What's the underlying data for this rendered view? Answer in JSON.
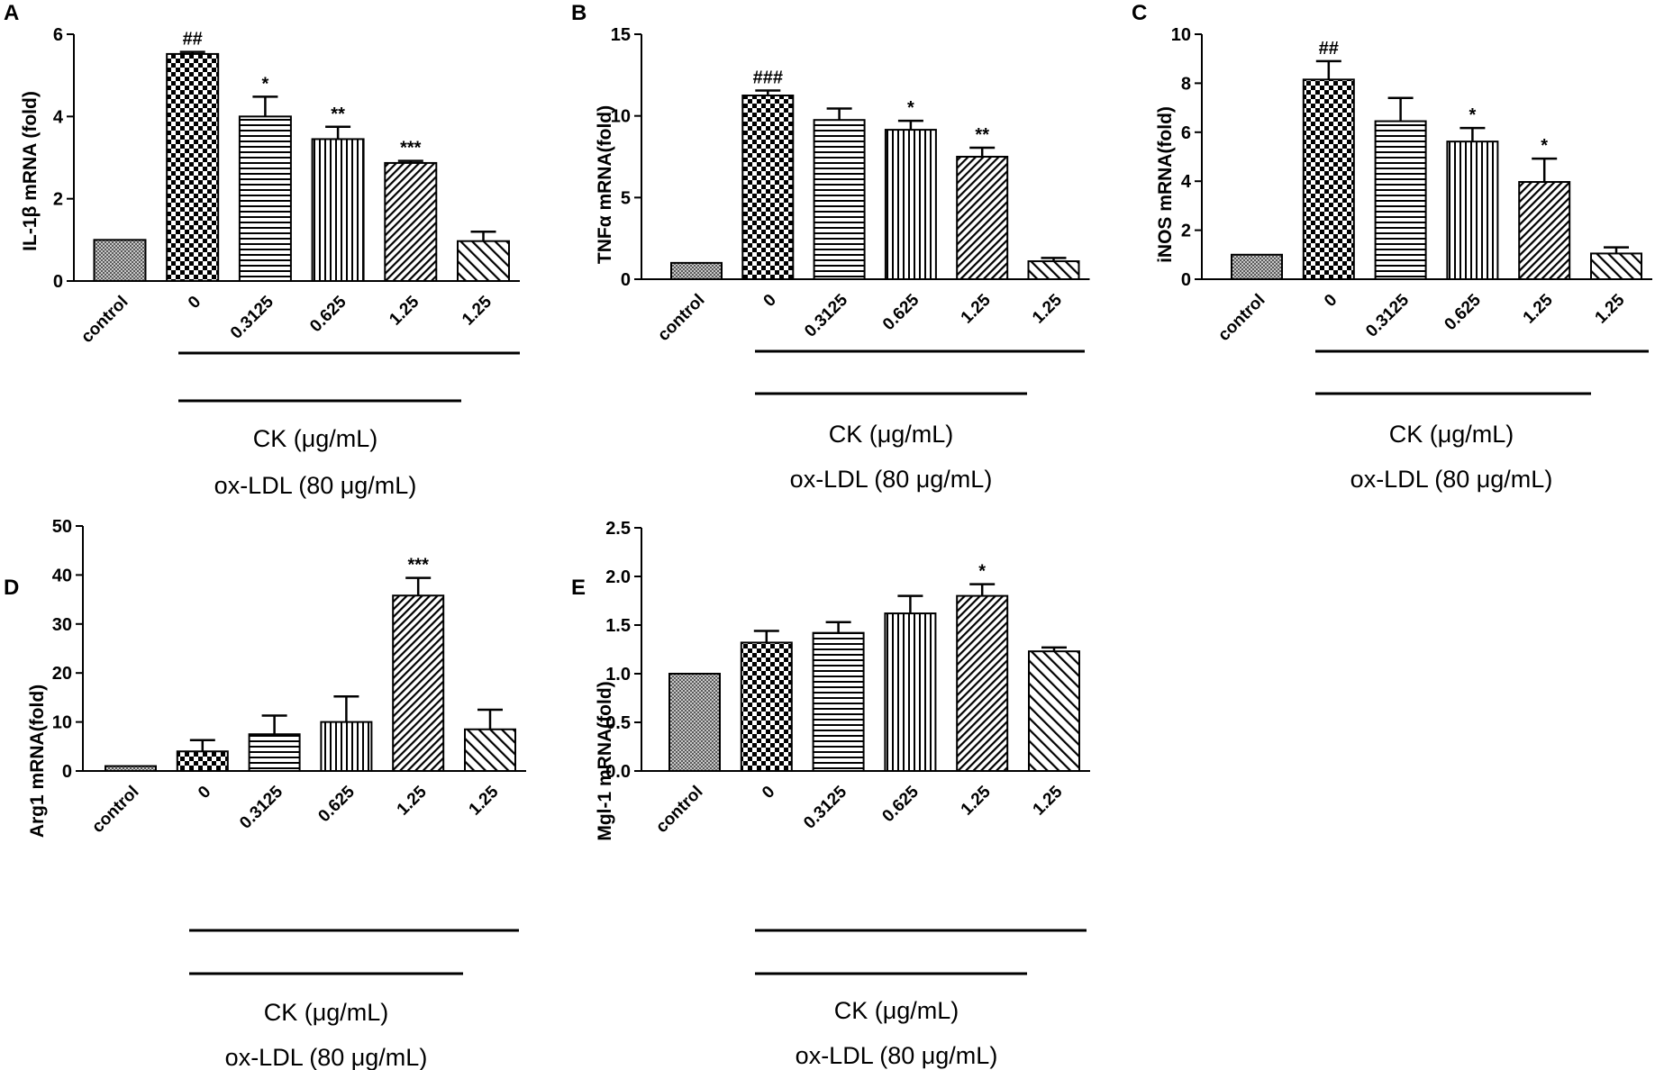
{
  "figure": {
    "type": "bar-chart-grid"
  },
  "chart_data": [
    {
      "panel": "A",
      "type": "bar",
      "ylabel": "IL-1β  mRNA (fold)",
      "ylim": [
        0,
        6
      ],
      "yticks": [
        "0",
        "2",
        "4",
        "6"
      ],
      "categories": [
        "control",
        "0",
        "0.3125",
        "0.625",
        "1.25",
        "1.25"
      ],
      "values": [
        1.0,
        5.52,
        4.0,
        3.45,
        2.87,
        0.97
      ],
      "errors": [
        0.0,
        0.05,
        0.48,
        0.3,
        0.05,
        0.23
      ],
      "significance": [
        "",
        "##",
        "*",
        "**",
        "***",
        ""
      ],
      "group_labels": {
        "ck": "CK (μg/mL)",
        "ox": "ox-LDL (80 μg/mL)"
      }
    },
    {
      "panel": "B",
      "type": "bar",
      "ylabel": "TNFα  mRNA(fold)",
      "ylim": [
        0,
        15
      ],
      "yticks": [
        "0",
        "5",
        "10",
        "15"
      ],
      "categories": [
        "control",
        "0",
        "0.3125",
        "0.625",
        "1.25",
        "1.25"
      ],
      "values": [
        1.0,
        11.25,
        9.75,
        9.15,
        7.5,
        1.1
      ],
      "errors": [
        0.0,
        0.3,
        0.7,
        0.55,
        0.55,
        0.2
      ],
      "significance": [
        "",
        "###",
        "",
        "*",
        "**",
        ""
      ],
      "group_labels": {
        "ck": "CK (μg/mL)",
        "ox": "ox-LDL (80 μg/mL)"
      }
    },
    {
      "panel": "C",
      "type": "bar",
      "ylabel": "iNOS mRNA(fold)",
      "ylim": [
        0,
        10
      ],
      "yticks": [
        "0",
        "2",
        "4",
        "6",
        "8",
        "10"
      ],
      "categories": [
        "control",
        "0",
        "0.3125",
        "0.625",
        "1.25",
        "1.25"
      ],
      "values": [
        1.0,
        8.15,
        6.45,
        5.62,
        3.97,
        1.05
      ],
      "errors": [
        0.0,
        0.75,
        0.95,
        0.55,
        0.95,
        0.25
      ],
      "significance": [
        "",
        "##",
        "",
        "*",
        "*",
        ""
      ],
      "group_labels": {
        "ck": "CK (μg/mL)",
        "ox": "ox-LDL (80 μg/mL)"
      }
    },
    {
      "panel": "D",
      "type": "bar",
      "ylabel": "Arg1 mRNA(fold)",
      "ylim": [
        0,
        50
      ],
      "yticks": [
        "0",
        "10",
        "20",
        "30",
        "40",
        "50"
      ],
      "categories": [
        "control",
        "0",
        "0.3125",
        "0.625",
        "1.25",
        "1.25"
      ],
      "values": [
        1.0,
        4.0,
        7.5,
        10.0,
        35.8,
        8.5
      ],
      "errors": [
        0.0,
        2.3,
        3.8,
        5.2,
        3.6,
        4.0
      ],
      "significance": [
        "",
        "",
        "",
        "",
        "***",
        ""
      ],
      "group_labels": {
        "ck": "CK (μg/mL)",
        "ox": "ox-LDL (80 μg/mL)"
      }
    },
    {
      "panel": "E",
      "type": "bar",
      "ylabel": "Mgl-1 mRNA(fold)",
      "ylim": [
        0,
        2.5
      ],
      "yticks": [
        "0.0",
        "0.5",
        "1.0",
        "1.5",
        "2.0",
        "2.5"
      ],
      "categories": [
        "control",
        "0",
        "0.3125",
        "0.625",
        "1.25",
        "1.25"
      ],
      "values": [
        1.0,
        1.32,
        1.42,
        1.62,
        1.8,
        1.23
      ],
      "errors": [
        0.0,
        0.12,
        0.11,
        0.18,
        0.12,
        0.04
      ],
      "significance": [
        "",
        "",
        "",
        "",
        "*",
        ""
      ],
      "group_labels": {
        "ck": "CK (μg/mL)",
        "ox": "ox-LDL (80 μg/mL)"
      }
    }
  ]
}
